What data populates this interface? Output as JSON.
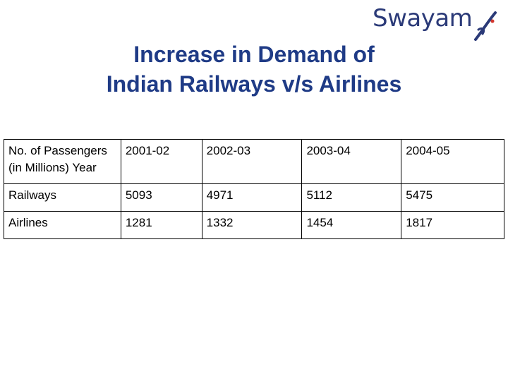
{
  "logo": {
    "brand": "Swayam",
    "icon": "swayam-swoosh-icon",
    "brand_color": "#2b3a78",
    "accent_color": "#d2372e"
  },
  "slide": {
    "title_line1": "Increase in Demand of",
    "title_line2": "Indian Railways v/s Airlines",
    "title_color": "#1f3b86"
  },
  "table": {
    "header_label_line1": "No. of Passengers",
    "header_label_line2": "(in Millions) Year",
    "years": [
      "2001-02",
      "2002-03",
      "2003-04",
      "2004-05"
    ],
    "rows": [
      {
        "label": "Railways",
        "values": [
          "5093",
          "4971",
          "5112",
          "5475"
        ]
      },
      {
        "label": "Airlines",
        "values": [
          "1281",
          "1332",
          "1454",
          "1817"
        ]
      }
    ]
  }
}
